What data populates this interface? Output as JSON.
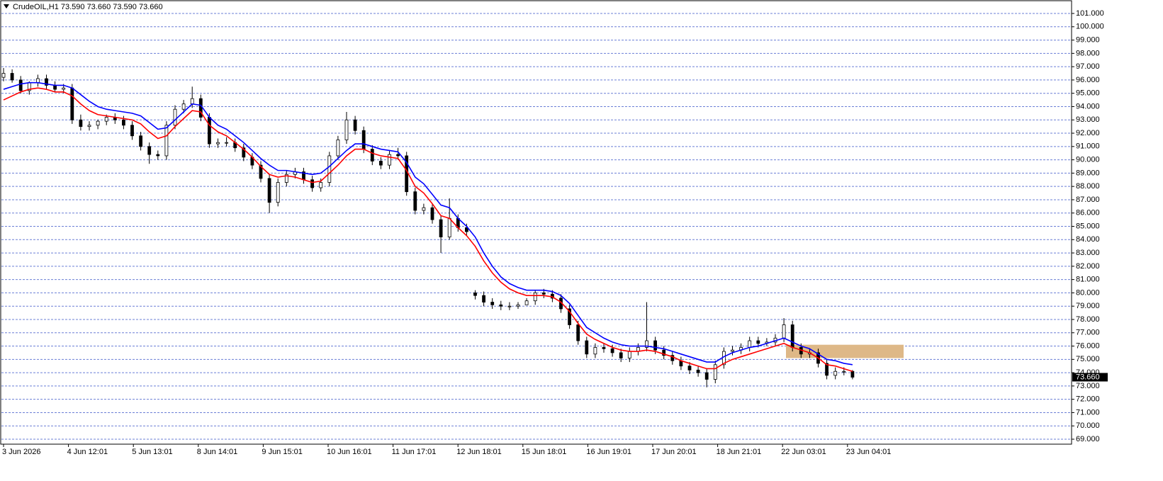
{
  "chart_data": {
    "type": "candlestick",
    "title": "CrudeOIL,H1  73.590 73.660 73.590 73.660",
    "x_labels": [
      "3 Jun 2026",
      "4 Jun 12:01",
      "5 Jun 13:01",
      "8 Jun 14:01",
      "9 Jun 15:01",
      "10 Jun 16:01",
      "11 Jun 17:01",
      "12 Jun 18:01",
      "15 Jun 18:01",
      "16 Jun 19:01",
      "17 Jun 20:01",
      "18 Jun 21:01",
      "22 Jun 03:01",
      "23 Jun 04:01"
    ],
    "ylim": [
      69,
      101
    ],
    "yticks": [
      {
        "value": 69,
        "label": "69.000"
      },
      {
        "value": 70,
        "label": "70.000"
      },
      {
        "value": 71,
        "label": "71.000"
      },
      {
        "value": 72,
        "label": "72.000"
      },
      {
        "value": 73,
        "label": "73.000"
      },
      {
        "value": 74,
        "label": "74.000"
      },
      {
        "value": 75,
        "label": "75.000"
      },
      {
        "value": 76,
        "label": "76.000"
      },
      {
        "value": 77,
        "label": "77.000"
      },
      {
        "value": 78,
        "label": "78.000"
      },
      {
        "value": 79,
        "label": "79.000"
      },
      {
        "value": 80,
        "label": "80.000"
      },
      {
        "value": 81,
        "label": "81.000"
      },
      {
        "value": 82,
        "label": "82.000"
      },
      {
        "value": 83,
        "label": "83.000"
      },
      {
        "value": 84,
        "label": "84.000"
      },
      {
        "value": 85,
        "label": "85.000"
      },
      {
        "value": 86,
        "label": "86.000"
      },
      {
        "value": 87,
        "label": "87.000"
      },
      {
        "value": 88,
        "label": "88.000"
      },
      {
        "value": 89,
        "label": "89.000"
      },
      {
        "value": 90,
        "label": "90.000"
      },
      {
        "value": 91,
        "label": "91.000"
      },
      {
        "value": 92,
        "label": "92.000"
      },
      {
        "value": 93,
        "label": "93.000"
      },
      {
        "value": 94,
        "label": "94.000"
      },
      {
        "value": 95,
        "label": "95.000"
      },
      {
        "value": 96,
        "label": "96.000"
      },
      {
        "value": 97,
        "label": "97.000"
      },
      {
        "value": 98,
        "label": "98.000"
      },
      {
        "value": 99,
        "label": "99.000"
      },
      {
        "value": 100,
        "label": "100.000"
      },
      {
        "value": 101,
        "label": "101.000"
      }
    ],
    "grid": true,
    "current_price": {
      "value": 73.66,
      "label": "73.660"
    },
    "zone": {
      "low": 75.1,
      "high": 76.1,
      "color": "#deb887"
    },
    "open": [
      96.2,
      96.5,
      96.0,
      95.2,
      95.8,
      96.1,
      95.6,
      95.3,
      95.4,
      93.0,
      92.5,
      92.6,
      92.9,
      93.2,
      93.0,
      92.6,
      91.8,
      91.0,
      90.4,
      90.3,
      92.6,
      93.8,
      94.2,
      94.6,
      93.2,
      91.2,
      91.3,
      91.3,
      90.9,
      90.2,
      89.6,
      88.6,
      86.8,
      88.3,
      88.9,
      89.1,
      88.5,
      87.9,
      88.3,
      90.3,
      91.5,
      93.0,
      92.2,
      90.8,
      89.9,
      89.6,
      90.4,
      90.3,
      87.6,
      86.2,
      86.4,
      85.5,
      84.2,
      85.6,
      84.9,
      80.0,
      79.8,
      79.3,
      79.1,
      79.0,
      79.0,
      79.1,
      79.4,
      80.0,
      79.9,
      79.6,
      78.8,
      77.6,
      76.4,
      75.4,
      75.9,
      75.8,
      75.5,
      75.1,
      75.6,
      75.9,
      76.4,
      75.7,
      75.3,
      74.9,
      74.5,
      74.2,
      74.0,
      73.5,
      74.6,
      75.6,
      75.7,
      75.9,
      76.4,
      76.2,
      76.3,
      76.6,
      77.6,
      75.9,
      75.4,
      75.5,
      74.7,
      73.8,
      74.1,
      74.1
    ],
    "high": [
      96.9,
      96.8,
      96.3,
      95.9,
      96.4,
      96.4,
      95.9,
      95.7,
      95.7,
      93.4,
      92.9,
      93.0,
      93.4,
      93.5,
      93.3,
      92.9,
      92.1,
      91.3,
      90.7,
      92.9,
      94.1,
      94.5,
      95.5,
      94.9,
      93.5,
      91.6,
      91.7,
      91.6,
      91.2,
      90.5,
      89.9,
      88.9,
      88.6,
      89.2,
      89.4,
      89.4,
      88.8,
      88.6,
      90.6,
      91.8,
      93.6,
      93.3,
      92.5,
      91.1,
      90.2,
      90.7,
      90.9,
      90.6,
      87.9,
      86.7,
      86.7,
      85.8,
      87.1,
      85.9,
      85.2,
      80.2,
      80.1,
      79.6,
      79.4,
      79.3,
      79.3,
      79.6,
      80.2,
      80.3,
      80.2,
      79.9,
      79.1,
      77.9,
      76.7,
      76.2,
      76.2,
      76.1,
      75.8,
      75.9,
      76.2,
      79.3,
      76.7,
      76.0,
      75.6,
      75.2,
      74.8,
      74.5,
      74.3,
      74.9,
      75.9,
      76.0,
      76.2,
      76.7,
      76.7,
      76.6,
      76.9,
      78.1,
      77.9,
      76.2,
      75.8,
      75.8,
      75.0,
      74.4,
      74.4,
      74.2
    ],
    "low": [
      95.9,
      95.8,
      95.0,
      94.9,
      95.5,
      95.3,
      95.1,
      95.0,
      92.7,
      92.2,
      92.2,
      92.3,
      92.6,
      92.7,
      92.3,
      91.5,
      90.7,
      89.7,
      90.0,
      90.0,
      92.3,
      93.5,
      93.9,
      92.9,
      90.9,
      90.9,
      91.0,
      90.6,
      89.9,
      89.3,
      88.3,
      86.0,
      86.5,
      88.0,
      88.6,
      88.2,
      87.6,
      87.6,
      88.0,
      90.0,
      91.2,
      91.9,
      90.5,
      89.6,
      89.3,
      89.3,
      90.0,
      87.3,
      85.9,
      85.9,
      85.2,
      83.0,
      84.0,
      84.6,
      84.3,
      79.5,
      79.0,
      78.8,
      78.7,
      78.7,
      78.8,
      79.1,
      79.1,
      79.6,
      79.3,
      78.5,
      77.3,
      76.1,
      75.1,
      75.1,
      75.5,
      75.2,
      74.8,
      74.8,
      75.3,
      75.6,
      75.4,
      75.0,
      74.6,
      74.2,
      73.9,
      73.7,
      72.9,
      73.2,
      74.3,
      75.3,
      75.4,
      75.6,
      75.9,
      76.0,
      76.0,
      76.3,
      75.6,
      75.1,
      75.1,
      74.4,
      73.5,
      73.5,
      73.8,
      73.5
    ],
    "close": [
      96.5,
      96.0,
      95.2,
      95.8,
      96.1,
      95.6,
      95.3,
      95.4,
      93.0,
      92.5,
      92.6,
      92.9,
      93.2,
      93.0,
      92.6,
      91.8,
      91.0,
      90.4,
      90.3,
      92.6,
      93.8,
      94.2,
      94.6,
      93.2,
      91.2,
      91.3,
      91.3,
      90.9,
      90.2,
      89.6,
      88.6,
      86.8,
      88.3,
      88.9,
      89.1,
      88.5,
      87.9,
      88.3,
      90.3,
      91.5,
      93.0,
      92.2,
      90.8,
      89.9,
      89.6,
      90.4,
      90.3,
      87.6,
      86.2,
      86.4,
      85.5,
      84.2,
      85.6,
      84.9,
      84.6,
      79.8,
      79.3,
      79.1,
      79.0,
      79.0,
      79.1,
      79.4,
      80.0,
      79.9,
      79.6,
      78.8,
      77.6,
      76.4,
      75.4,
      75.9,
      75.8,
      75.5,
      75.1,
      75.6,
      75.9,
      76.4,
      75.7,
      75.3,
      74.9,
      74.5,
      74.2,
      74.0,
      73.5,
      74.6,
      75.6,
      75.7,
      75.9,
      76.4,
      76.2,
      76.3,
      76.6,
      77.6,
      75.9,
      75.4,
      75.5,
      74.7,
      73.8,
      74.1,
      74.1,
      73.66
    ],
    "series": [
      {
        "color": "#0000ff",
        "values": [
          95.3,
          95.5,
          95.7,
          95.8,
          95.8,
          95.7,
          95.6,
          95.6,
          95.4,
          94.9,
          94.4,
          94.0,
          93.8,
          93.7,
          93.6,
          93.5,
          93.3,
          92.8,
          92.3,
          92.4,
          93.0,
          93.6,
          94.2,
          94.1,
          93.2,
          92.6,
          92.3,
          91.8,
          91.3,
          90.7,
          90.1,
          89.6,
          89.2,
          89.2,
          89.1,
          89.0,
          88.9,
          89.0,
          89.5,
          90.1,
          90.7,
          91.2,
          91.2,
          91.0,
          90.8,
          90.7,
          90.6,
          89.8,
          88.7,
          88.2,
          87.4,
          86.6,
          86.4,
          85.6,
          85.0,
          84.2,
          83.0,
          82.0,
          81.2,
          80.7,
          80.4,
          80.2,
          80.2,
          80.2,
          80.1,
          79.8,
          79.2,
          78.3,
          77.4,
          77.0,
          76.6,
          76.3,
          76.1,
          76.0,
          76.0,
          76.0,
          75.9,
          75.8,
          75.6,
          75.4,
          75.2,
          75.0,
          74.8,
          74.8,
          75.2,
          75.5,
          75.7,
          75.9,
          76.0,
          76.2,
          76.4,
          76.6,
          76.3,
          76.0,
          75.8,
          75.4,
          75.0,
          74.9,
          74.7,
          74.6
        ]
      },
      {
        "color": "#ff0000",
        "values": [
          94.5,
          94.8,
          95.1,
          95.3,
          95.4,
          95.3,
          95.1,
          95.1,
          94.8,
          94.2,
          93.7,
          93.4,
          93.3,
          93.2,
          93.1,
          93.0,
          92.7,
          92.1,
          91.6,
          91.8,
          92.5,
          93.1,
          93.7,
          93.6,
          92.6,
          92.1,
          91.8,
          91.3,
          90.8,
          90.2,
          89.5,
          88.9,
          88.7,
          88.8,
          88.7,
          88.5,
          88.3,
          88.4,
          89.0,
          89.6,
          90.3,
          90.8,
          90.8,
          90.5,
          90.3,
          90.2,
          90.1,
          89.2,
          88.0,
          87.5,
          86.7,
          85.8,
          85.6,
          84.9,
          84.3,
          83.5,
          82.4,
          81.5,
          80.8,
          80.3,
          80.0,
          79.8,
          79.8,
          79.8,
          79.7,
          79.3,
          78.6,
          77.7,
          76.9,
          76.5,
          76.2,
          75.9,
          75.7,
          75.6,
          75.6,
          75.7,
          75.6,
          75.4,
          75.2,
          74.9,
          74.7,
          74.5,
          74.3,
          74.3,
          74.7,
          75.0,
          75.2,
          75.4,
          75.6,
          75.8,
          76.0,
          76.2,
          75.9,
          75.7,
          75.5,
          75.1,
          74.6,
          74.5,
          74.3,
          74.1
        ]
      }
    ]
  }
}
